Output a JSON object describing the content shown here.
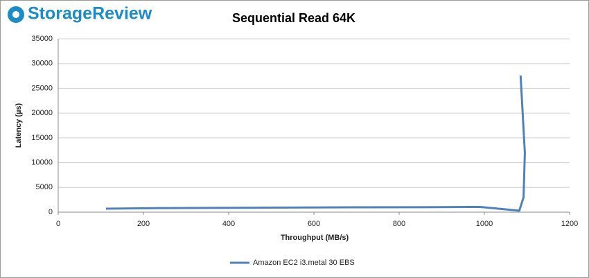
{
  "logo_text": "StorageReview",
  "chart_data": {
    "type": "line",
    "title": "Sequential Read 64K",
    "x_label": "Throughput (MB/s)",
    "y_label": "Latency (µs)",
    "x": [
      112,
      230,
      350,
      470,
      600,
      720,
      850,
      960,
      990,
      1082,
      1092,
      1095,
      1085
    ],
    "series": [
      {
        "name": "Amazon EC2 i3.metal 30 EBS",
        "color": "#4f81bd",
        "values": [
          700,
          800,
          850,
          900,
          950,
          980,
          1000,
          1050,
          1050,
          300,
          3000,
          12000,
          27600
        ]
      }
    ],
    "xlim": [
      0,
      1200
    ],
    "xticks": [
      0,
      200,
      400,
      600,
      800,
      1000,
      1200
    ],
    "ylim": [
      0,
      35000
    ],
    "yticks": [
      0,
      5000,
      10000,
      15000,
      20000,
      25000,
      30000,
      35000
    ],
    "grid": true,
    "legend": "bottom"
  }
}
